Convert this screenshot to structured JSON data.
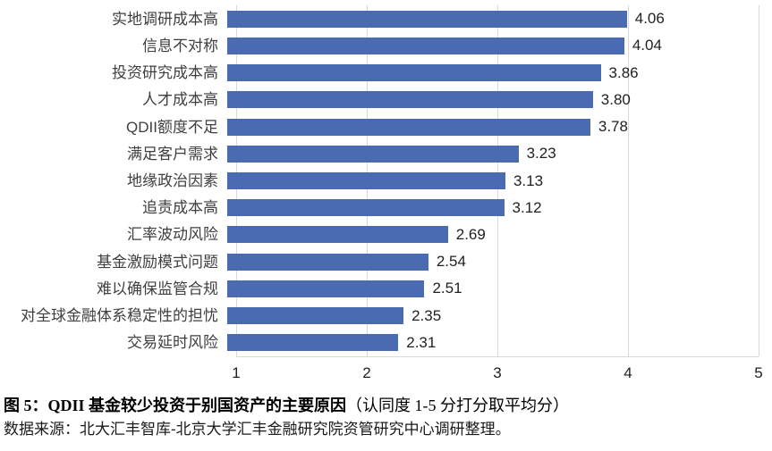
{
  "chart_data": {
    "type": "bar",
    "orientation": "horizontal",
    "categories": [
      "实地调研成本高",
      "信息不对称",
      "投资研究成本高",
      "人才成本高",
      "QDII额度不足",
      "满足客户需求",
      "地缘政治因素",
      "追责成本高",
      "汇率波动风险",
      "基金激励模式问题",
      "难以确保监管合规",
      "对全球金融体系稳定性的担忧",
      "交易延时风险"
    ],
    "values": [
      4.06,
      4.04,
      3.86,
      3.8,
      3.78,
      3.23,
      3.13,
      3.12,
      2.69,
      2.54,
      2.51,
      2.35,
      2.31
    ],
    "value_labels": [
      "4.06",
      "4.04",
      "3.86",
      "3.80",
      "3.78",
      "3.23",
      "3.13",
      "3.12",
      "2.69",
      "2.54",
      "2.51",
      "2.35",
      "2.31"
    ],
    "xlim": [
      1,
      5
    ],
    "x_ticks": [
      "1",
      "2",
      "3",
      "4",
      "5"
    ],
    "grid": true,
    "legend": "none",
    "bar_color": "#4a6bb2",
    "gridline_color": "#d9d9d9",
    "title": "图 5：QDII 基金较少投资于别国资产的主要原因（认同度 1-5 分打分取平均分）"
  },
  "caption": {
    "title": "图 5：QDII 基金较少投资于别国资产的主要原因",
    "title_note": "（认同度 1-5 分打分取平均分）",
    "source": "数据来源：北大汇丰智库-北京大学汇丰金融研究院资管研究中心调研整理。"
  }
}
